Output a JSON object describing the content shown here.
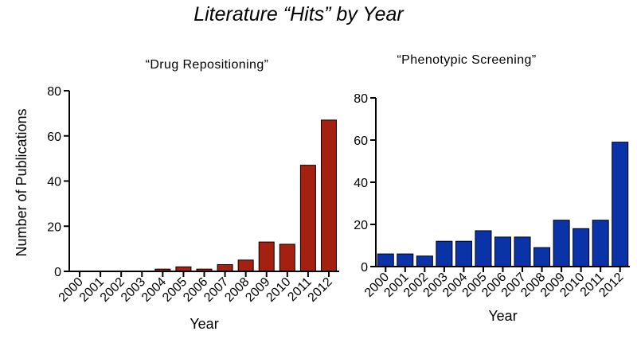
{
  "figure": {
    "title": "Literature  “Hits” by Year"
  },
  "chart_data": [
    {
      "type": "bar",
      "title": "“Drug Repositioning”",
      "xlabel": "Year",
      "ylabel": "Number of Publications",
      "ylim": [
        0,
        80
      ],
      "yticks": [
        0,
        20,
        40,
        60,
        80
      ],
      "categories": [
        "2000",
        "2001",
        "2002",
        "2003",
        "2004",
        "2005",
        "2006",
        "2007",
        "2008",
        "2009",
        "2010",
        "2011",
        "2012"
      ],
      "values": [
        0,
        0,
        0,
        0,
        1,
        2,
        1,
        3,
        5,
        13,
        12,
        47,
        67
      ],
      "color": "#a42010",
      "grid": false,
      "legend": "none"
    },
    {
      "type": "bar",
      "title": "“Phenotypic Screening”",
      "xlabel": "Year",
      "ylabel": "",
      "ylim": [
        0,
        80
      ],
      "yticks": [
        0,
        20,
        40,
        60,
        80
      ],
      "categories": [
        "2000",
        "2001",
        "2002",
        "2003",
        "2004",
        "2005",
        "2006",
        "2007",
        "2008",
        "2009",
        "2010",
        "2011",
        "2012"
      ],
      "values": [
        6,
        6,
        5,
        12,
        12,
        17,
        14,
        14,
        9,
        22,
        18,
        22,
        59
      ],
      "color": "#0a33a8",
      "grid": false,
      "legend": "none"
    }
  ]
}
